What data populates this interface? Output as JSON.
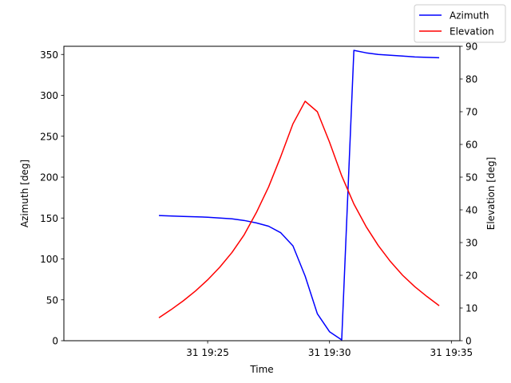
{
  "chart_data": {
    "type": "line",
    "xlabel": "Time",
    "ylabel_left": "Azimuth [deg]",
    "ylabel_right": "Elevation [deg]",
    "x_range_minutes": [
      19.1,
      35.35
    ],
    "x_ticks": [
      {
        "minute": 25,
        "label": "31 19:25"
      },
      {
        "minute": 30,
        "label": "31 19:30"
      },
      {
        "minute": 35,
        "label": "31 19:35"
      }
    ],
    "ylim_left": [
      0,
      360
    ],
    "ylim_right": [
      0,
      90
    ],
    "yticks_left": [
      0,
      50,
      100,
      150,
      200,
      250,
      300,
      350
    ],
    "yticks_right": [
      0,
      10,
      20,
      30,
      40,
      50,
      60,
      70,
      80,
      90
    ],
    "grid": false,
    "legend": {
      "placement": "top-right"
    },
    "series": [
      {
        "name": "Azimuth",
        "axis": "left",
        "color": "#0000ff",
        "x": [
          23.0,
          24.0,
          25.0,
          25.5,
          26.0,
          26.5,
          27.0,
          27.5,
          28.0,
          28.5,
          29.0,
          29.5,
          30.0,
          30.5,
          31.0,
          31.5,
          32.0,
          32.5,
          33.0,
          33.5,
          34.0,
          34.5
        ],
        "values": [
          153,
          152,
          151,
          150,
          149,
          147,
          144,
          140,
          132,
          116,
          79,
          33,
          11,
          1,
          355,
          352,
          350,
          349,
          348,
          347,
          346.5,
          346
        ]
      },
      {
        "name": "Elevation",
        "axis": "right",
        "color": "#ff0000",
        "x": [
          23.0,
          23.5,
          24.0,
          24.5,
          25.0,
          25.5,
          26.0,
          26.5,
          27.0,
          27.5,
          28.0,
          28.5,
          29.0,
          29.5,
          30.0,
          30.5,
          31.0,
          31.5,
          32.0,
          32.5,
          33.0,
          33.5,
          34.0,
          34.5
        ],
        "values": [
          7,
          9.5,
          12.2,
          15.2,
          18.6,
          22.5,
          27,
          32.4,
          39.2,
          47,
          56.3,
          66.3,
          73.2,
          70,
          60.7,
          50.4,
          41.8,
          34.9,
          29.1,
          24.2,
          20,
          16.5,
          13.5,
          10.7
        ]
      }
    ]
  }
}
